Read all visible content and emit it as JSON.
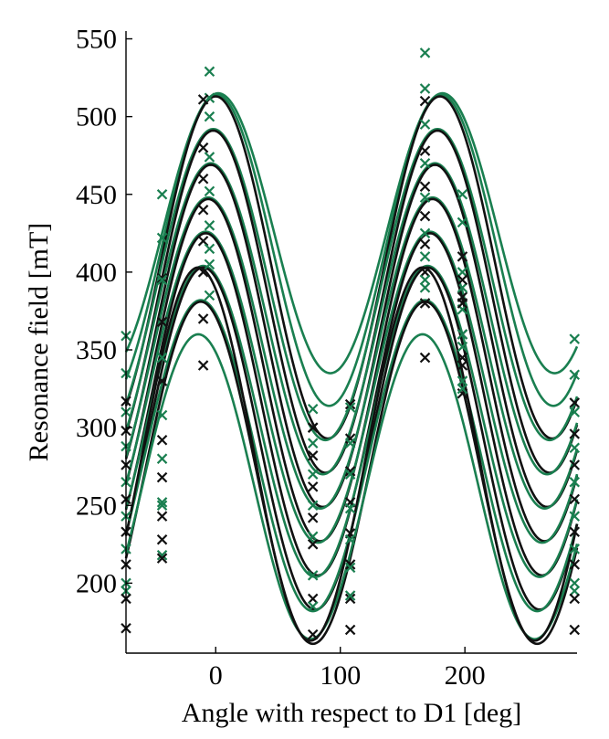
{
  "chart_data": {
    "type": "scatter",
    "title": "",
    "xlabel": "Angle with respect to D1 [deg]",
    "ylabel": "Resonance field [mT]",
    "xlim": [
      -72,
      290
    ],
    "ylim": [
      155,
      555
    ],
    "xticks": [
      0,
      100,
      200
    ],
    "yticks": [
      200,
      250,
      300,
      350,
      400,
      450,
      500,
      550
    ],
    "grid": false,
    "legend": "none",
    "colors": {
      "black": "#111111",
      "green": "#1a7f50"
    },
    "model": "B(theta) = c + a*cos(2*(theta - phase)); fitted curves drawn as lines, measurements as x markers",
    "series": [
      {
        "color": "green",
        "c": 425,
        "a": 90,
        "phase": 182,
        "points": [
          [
            -72,
            359
          ],
          [
            -43,
            450
          ],
          [
            -5,
            529
          ],
          [
            168,
            541
          ],
          [
            198,
            450
          ],
          [
            288,
            357
          ]
        ]
      },
      {
        "color": "green",
        "c": 414,
        "a": 100,
        "phase": 181,
        "points": [
          [
            -72,
            335
          ],
          [
            -43,
            422
          ],
          [
            -5,
            512
          ],
          [
            168,
            518
          ],
          [
            198,
            432
          ],
          [
            288,
            334
          ]
        ]
      },
      {
        "color": "black",
        "c": 403,
        "a": 110,
        "phase": 180,
        "points": [
          [
            -72,
            317
          ],
          [
            -43,
            396
          ],
          [
            -10,
            511
          ],
          [
            78,
            300
          ],
          [
            108,
            315
          ],
          [
            168,
            510
          ],
          [
            198,
            410
          ],
          [
            288,
            316
          ]
        ]
      },
      {
        "color": "green",
        "c": 392,
        "a": 100,
        "phase": 178,
        "points": [
          [
            -72,
            310
          ],
          [
            -43,
            395
          ],
          [
            -5,
            500
          ],
          [
            78,
            312
          ],
          [
            108,
            313
          ],
          [
            168,
            495
          ],
          [
            198,
            400
          ],
          [
            288,
            310
          ]
        ]
      },
      {
        "color": "black",
        "c": 381,
        "a": 110,
        "phase": 178,
        "points": [
          [
            -72,
            298
          ],
          [
            -43,
            368
          ],
          [
            -10,
            480
          ],
          [
            78,
            300
          ],
          [
            108,
            293
          ],
          [
            168,
            478
          ],
          [
            198,
            384
          ],
          [
            288,
            296
          ]
        ]
      },
      {
        "color": "green",
        "c": 370,
        "a": 100,
        "phase": 176,
        "points": [
          [
            -72,
            288
          ],
          [
            -43,
            345
          ],
          [
            -5,
            474
          ],
          [
            78,
            290
          ],
          [
            108,
            290
          ],
          [
            168,
            470
          ],
          [
            198,
            376
          ],
          [
            288,
            287
          ]
        ]
      },
      {
        "color": "black",
        "c": 359,
        "a": 110,
        "phase": 176,
        "points": [
          [
            -72,
            276
          ],
          [
            -43,
            330
          ],
          [
            -10,
            460
          ],
          [
            78,
            282
          ],
          [
            108,
            272
          ],
          [
            168,
            455
          ],
          [
            198,
            360
          ],
          [
            288,
            276
          ]
        ]
      },
      {
        "color": "green",
        "c": 348,
        "a": 100,
        "phase": 174,
        "points": [
          [
            -72,
            265
          ],
          [
            -43,
            308
          ],
          [
            -5,
            452
          ],
          [
            78,
            270
          ],
          [
            108,
            270
          ],
          [
            168,
            448
          ],
          [
            198,
            352
          ],
          [
            288,
            265
          ]
        ]
      },
      {
        "color": "black",
        "c": 337,
        "a": 110,
        "phase": 174,
        "points": [
          [
            -72,
            254
          ],
          [
            -43,
            292
          ],
          [
            -10,
            440
          ],
          [
            78,
            262
          ],
          [
            108,
            252
          ],
          [
            168,
            436
          ],
          [
            198,
            340
          ],
          [
            288,
            254
          ]
        ]
      },
      {
        "color": "green",
        "c": 326,
        "a": 100,
        "phase": 172,
        "points": [
          [
            -72,
            243
          ],
          [
            -43,
            280
          ],
          [
            -5,
            430
          ],
          [
            78,
            250
          ],
          [
            108,
            248
          ],
          [
            168,
            425
          ],
          [
            198,
            330
          ],
          [
            288,
            243
          ]
        ]
      },
      {
        "color": "black",
        "c": 315,
        "a": 110,
        "phase": 172,
        "points": [
          [
            -72,
            233
          ],
          [
            -43,
            268
          ],
          [
            -10,
            420
          ],
          [
            78,
            242
          ],
          [
            108,
            232
          ],
          [
            168,
            418
          ],
          [
            198,
            322
          ],
          [
            288,
            233
          ]
        ]
      },
      {
        "color": "green",
        "c": 304,
        "a": 100,
        "phase": 170,
        "points": [
          [
            -72,
            222
          ],
          [
            -43,
            252
          ],
          [
            -5,
            415
          ],
          [
            78,
            230
          ],
          [
            108,
            228
          ],
          [
            168,
            410
          ],
          [
            198,
            325
          ],
          [
            288,
            222
          ]
        ]
      },
      {
        "color": "black",
        "c": 293,
        "a": 110,
        "phase": 170,
        "points": [
          [
            -72,
            212
          ],
          [
            -43,
            243
          ],
          [
            -10,
            400
          ],
          [
            78,
            225
          ],
          [
            108,
            212
          ],
          [
            168,
            400
          ],
          [
            198,
            345
          ],
          [
            288,
            212
          ]
        ]
      },
      {
        "color": "green",
        "c": 282,
        "a": 100,
        "phase": 168,
        "points": [
          [
            -72,
            195
          ],
          [
            -43,
            218
          ],
          [
            -5,
            405
          ],
          [
            78,
            205
          ],
          [
            108,
            210
          ],
          [
            168,
            395
          ],
          [
            198,
            360
          ],
          [
            288,
            195
          ]
        ]
      },
      {
        "color": "black",
        "c": 271,
        "a": 110,
        "phase": 168,
        "points": [
          [
            -72,
            190
          ],
          [
            -43,
            228
          ],
          [
            -10,
            370
          ],
          [
            78,
            190
          ],
          [
            108,
            190
          ],
          [
            168,
            380
          ],
          [
            198,
            380
          ],
          [
            288,
            190
          ]
        ]
      },
      {
        "color": "green",
        "c": 262,
        "a": 98,
        "phase": 166,
        "points": [
          [
            -72,
            200
          ],
          [
            -43,
            250
          ],
          [
            -5,
            385
          ],
          [
            78,
            185
          ],
          [
            108,
            192
          ],
          [
            168,
            390
          ],
          [
            198,
            390
          ],
          [
            288,
            200
          ]
        ]
      },
      {
        "color": "black",
        "c": 283,
        "a": 120,
        "phase": 166,
        "points": [
          [
            -72,
            171
          ],
          [
            -43,
            216
          ],
          [
            -10,
            340
          ],
          [
            78,
            167
          ],
          [
            108,
            170
          ],
          [
            168,
            345
          ],
          [
            198,
            395
          ],
          [
            288,
            170
          ]
        ]
      }
    ]
  }
}
